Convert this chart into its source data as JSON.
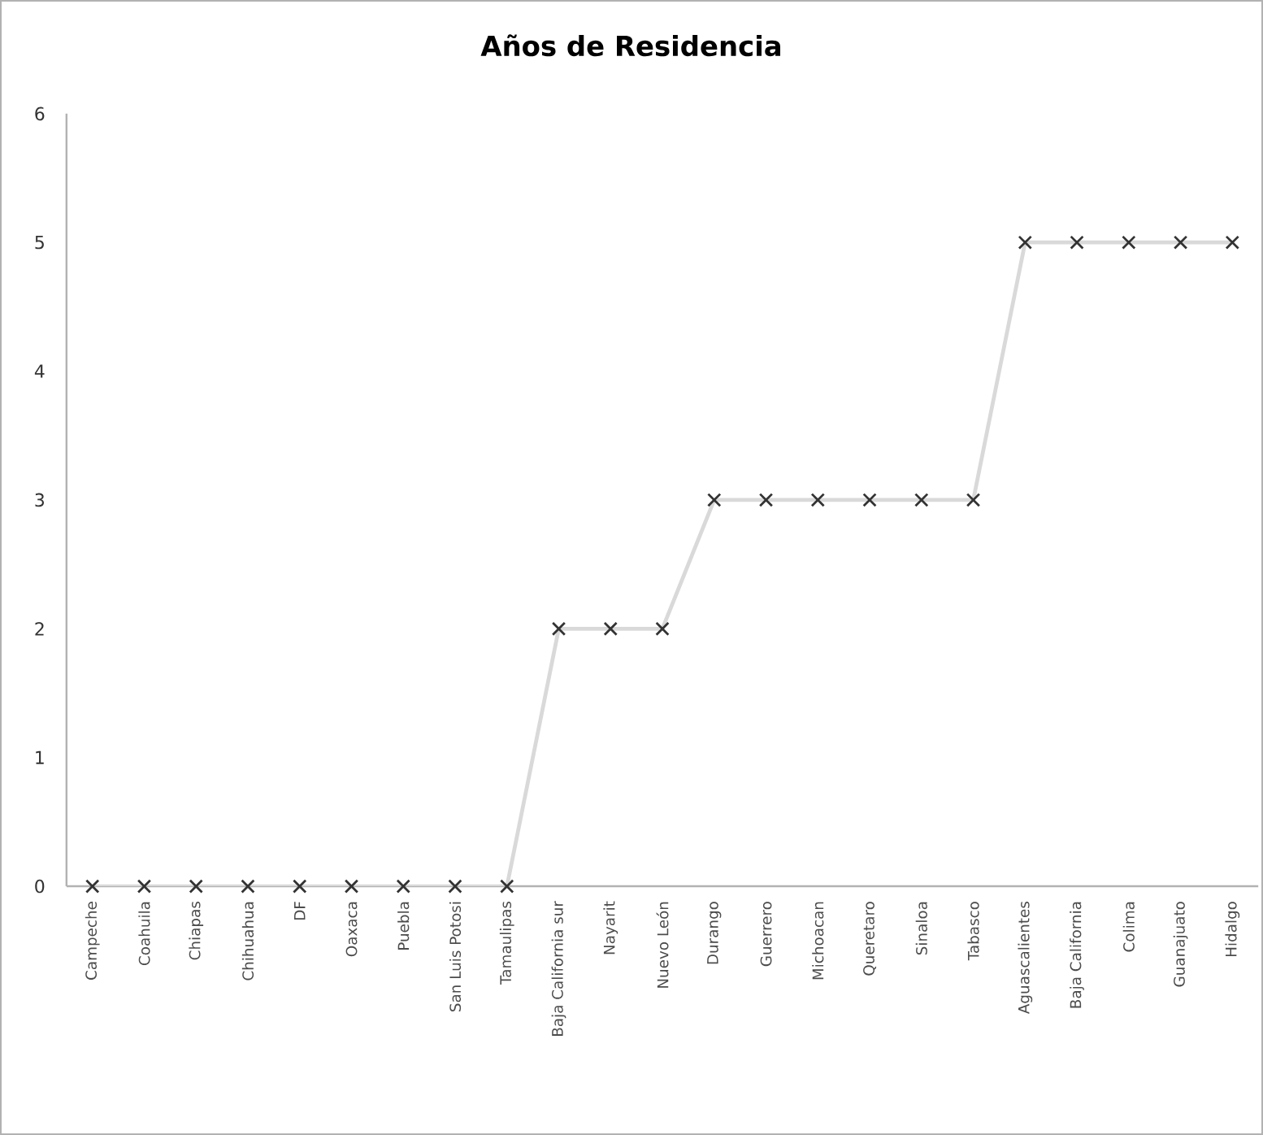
{
  "chart_data": {
    "type": "line",
    "title": "Años de Residencia",
    "categories": [
      "Campeche",
      "Coahuila",
      "Chiapas",
      "Chihuahua",
      "DF",
      "Oaxaca",
      "Puebla",
      "San Luis Potosi",
      "Tamaulipas",
      "Baja California sur",
      "Nayarit",
      "Nuevo León",
      "Durango",
      "Guerrero",
      "Michoacan",
      "Queretaro",
      "Sinaloa",
      "Tabasco",
      "Aguascalientes",
      "Baja California",
      "Colima",
      "Guanajuato",
      "Hidalgo"
    ],
    "series": [
      {
        "color": "#d9d9d9",
        "values": [
          0,
          0,
          0,
          0,
          0,
          0,
          0,
          0,
          0,
          2,
          2,
          2,
          3,
          3,
          3,
          3,
          3,
          3,
          5,
          5,
          5,
          5,
          5
        ]
      }
    ],
    "ylim": [
      0,
      6
    ],
    "yticks": [
      0,
      1,
      2,
      3,
      4,
      5,
      6
    ],
    "marker": "cross",
    "line_style": "solid",
    "grid": false
  }
}
